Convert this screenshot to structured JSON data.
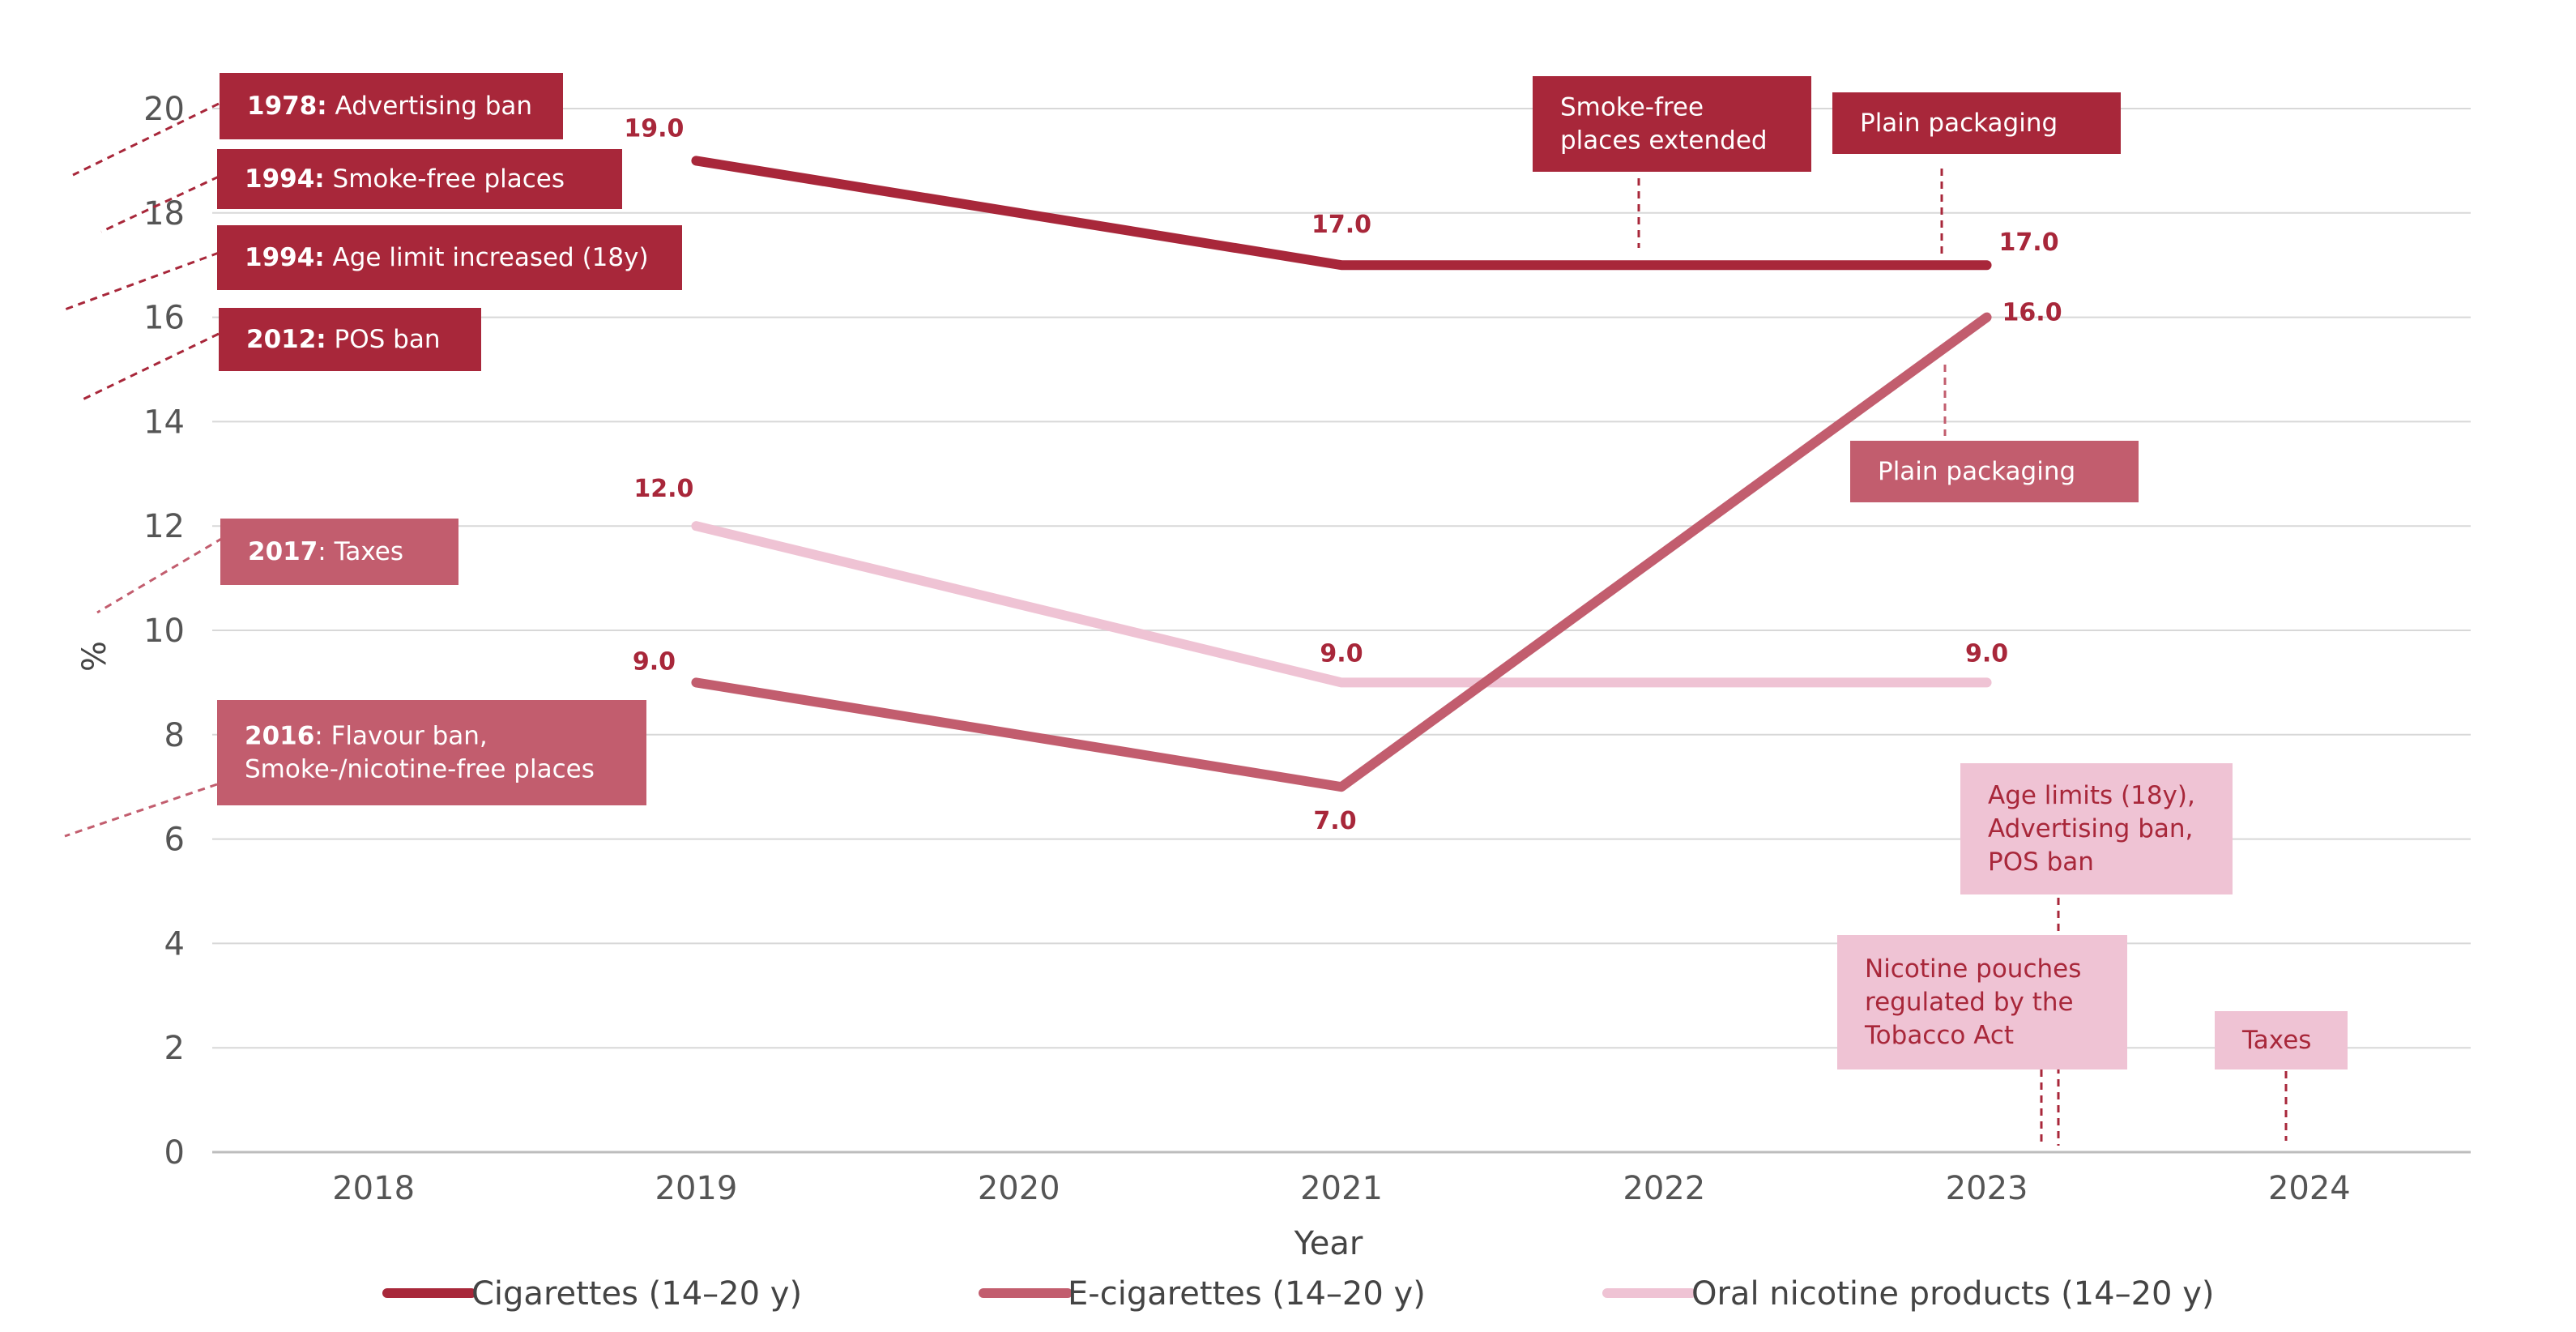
{
  "colors": {
    "cig": "#a8273a",
    "ecig": "#c25d6e",
    "oral": "#efc3d4",
    "grid": "#d8d8d8",
    "label": "#a8273a"
  },
  "chart_data": {
    "type": "line",
    "title": "",
    "xlabel": "Year",
    "ylabel": "%",
    "categories": [
      "2018",
      "2019",
      "2020",
      "2021",
      "2022",
      "2023",
      "2024"
    ],
    "ylim": [
      0,
      20
    ],
    "yticks": [
      "0",
      "2",
      "4",
      "6",
      "8",
      "10",
      "12",
      "14",
      "16",
      "18",
      "20"
    ],
    "grid": true,
    "series": [
      {
        "name": "Cigarettes (14–20 y)",
        "color": "#a8273a",
        "points": [
          {
            "x": "2019",
            "y": 19.0,
            "label": "19.0"
          },
          {
            "x": "2021",
            "y": 17.0,
            "label": "17.0"
          },
          {
            "x": "2023",
            "y": 17.0,
            "label": "17.0"
          }
        ]
      },
      {
        "name": "E-cigarettes (14–20 y)",
        "color": "#c25d6e",
        "points": [
          {
            "x": "2019",
            "y": 9.0,
            "label": "9.0"
          },
          {
            "x": "2021",
            "y": 7.0,
            "label": "7.0"
          },
          {
            "x": "2023",
            "y": 16.0,
            "label": "16.0"
          }
        ]
      },
      {
        "name": "Oral nicotine products (14–20 y)",
        "color": "#efc3d4",
        "points": [
          {
            "x": "2019",
            "y": 12.0,
            "label": "12.0"
          },
          {
            "x": "2021",
            "y": 9.0,
            "label": "9.0"
          },
          {
            "x": "2023",
            "y": 9.0,
            "label": "9.0"
          }
        ]
      }
    ],
    "annotations": [
      {
        "id": "1978-advertising-ban",
        "bold": "1978:",
        "text": " Advertising ban",
        "series": "Cigarettes"
      },
      {
        "id": "1994-smoke-free",
        "bold": "1994:",
        "text": " Smoke-free places",
        "series": "Cigarettes"
      },
      {
        "id": "1994-age-limit",
        "bold": "1994:",
        "text": " Age limit increased (18y)",
        "series": "Cigarettes"
      },
      {
        "id": "2012-pos-ban",
        "bold": "2012:",
        "text": " POS ban",
        "series": "Cigarettes"
      },
      {
        "id": "2017-taxes",
        "bold": "2017",
        "text": ": Taxes",
        "series": "E-cigarettes"
      },
      {
        "id": "2016-flavour-ban",
        "bold": "2016",
        "text": ": Flavour ban,",
        "text2": "Smoke-/nicotine-free places",
        "series": "E-cigarettes"
      },
      {
        "id": "smoke-free-extended",
        "lines": [
          "Smoke-free",
          "places extended"
        ],
        "series": "Cigarettes"
      },
      {
        "id": "plain-packaging-cig",
        "lines": [
          "Plain packaging"
        ],
        "series": "Cigarettes"
      },
      {
        "id": "plain-packaging-ecig",
        "lines": [
          "Plain packaging"
        ],
        "series": "E-cigarettes"
      },
      {
        "id": "age-limits-oral",
        "lines": [
          "Age limits (18y),",
          "Advertising ban,",
          "POS ban"
        ],
        "series": "Oral nicotine products"
      },
      {
        "id": "nicotine-pouches",
        "lines": [
          "Nicotine pouches",
          "regulated by the",
          "Tobacco Act"
        ],
        "series": "Oral nicotine products"
      },
      {
        "id": "taxes-oral",
        "lines": [
          "Taxes"
        ],
        "series": "Oral nicotine products"
      }
    ]
  }
}
